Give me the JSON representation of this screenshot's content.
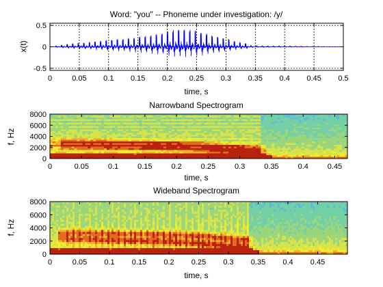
{
  "chart_data": [
    {
      "type": "line",
      "title": "Word: \"you\" --  Phoneme under investigation: /y/",
      "xlabel": "time, s",
      "ylabel": "x(t)",
      "xlim": [
        0,
        0.5
      ],
      "ylim": [
        -0.55,
        0.55
      ],
      "xticks": [
        "0",
        "0.05",
        "0.1",
        "0.15",
        "0.2",
        "0.25",
        "0.3",
        "0.35",
        "0.4",
        "0.45",
        "0.5"
      ],
      "yticks": [
        "0.5",
        "0",
        "-0.5"
      ],
      "grid": true,
      "line_color": "#0000ff",
      "envelope": {
        "t": [
          0,
          0.015,
          0.03,
          0.06,
          0.1,
          0.14,
          0.18,
          0.2,
          0.22,
          0.24,
          0.26,
          0.28,
          0.3,
          0.32,
          0.335,
          0.34,
          0.36,
          0.4,
          0.45,
          0.5
        ],
        "amp": [
          0.005,
          0.04,
          0.08,
          0.12,
          0.2,
          0.26,
          0.36,
          0.45,
          0.52,
          0.5,
          0.42,
          0.32,
          0.25,
          0.14,
          0.1,
          0.04,
          0.03,
          0.025,
          0.012,
          0.005
        ]
      }
    },
    {
      "type": "heatmap",
      "title": "Narrowband Spectrogram",
      "xlabel": "time, s",
      "ylabel": "f, Hz",
      "xlim": [
        0,
        0.47
      ],
      "ylim": [
        0,
        8000
      ],
      "xticks": [
        "0",
        "0.05",
        "0.1",
        "0.15",
        "0.2",
        "0.25",
        "0.3",
        "0.35",
        "0.4",
        "0.45"
      ],
      "yticks": [
        "8000",
        "6000",
        "4000",
        "2000",
        "0"
      ],
      "colormap": [
        "#5fbcd8",
        "#73cfa6",
        "#9cd57a",
        "#d6e34a",
        "#f0ee2a",
        "#f3b22a",
        "#e36a1e",
        "#b8220f"
      ],
      "formant_tracks_hz": [
        {
          "t": [
            0.0,
            0.1,
            0.2,
            0.27,
            0.33
          ],
          "f": [
            3100,
            3000,
            2700,
            2300,
            1800
          ]
        },
        {
          "t": [
            0.0,
            0.1,
            0.2,
            0.27,
            0.33
          ],
          "f": [
            2300,
            2100,
            1900,
            1500,
            1000
          ]
        },
        {
          "t": [
            0.0,
            0.2,
            0.34
          ],
          "f": [
            300,
            300,
            350
          ]
        }
      ]
    },
    {
      "type": "heatmap",
      "title": "Wideband Spectrogram",
      "xlabel": "time, s",
      "ylabel": "f, Hz",
      "xlim": [
        0,
        0.5
      ],
      "ylim": [
        0,
        8000
      ],
      "xticks": [
        "0",
        "0.05",
        "0.1",
        "0.15",
        "0.2",
        "0.25",
        "0.3",
        "0.35",
        "0.4",
        "0.45"
      ],
      "yticks": [
        "8000",
        "6000",
        "4000",
        "2000",
        "0"
      ],
      "colormap": [
        "#5fbcd8",
        "#73cfa6",
        "#9cd57a",
        "#d6e34a",
        "#f0ee2a",
        "#f3b22a",
        "#e36a1e",
        "#b8220f"
      ],
      "formant_tracks_hz": [
        {
          "t": [
            0.02,
            0.1,
            0.2,
            0.27,
            0.33
          ],
          "f": [
            3300,
            3200,
            3000,
            2700,
            2200
          ]
        },
        {
          "t": [
            0.02,
            0.1,
            0.2,
            0.27,
            0.33
          ],
          "f": [
            2300,
            2100,
            1900,
            1500,
            1000
          ]
        },
        {
          "t": [
            0.0,
            0.2,
            0.34
          ],
          "f": [
            300,
            300,
            350
          ]
        }
      ]
    }
  ]
}
